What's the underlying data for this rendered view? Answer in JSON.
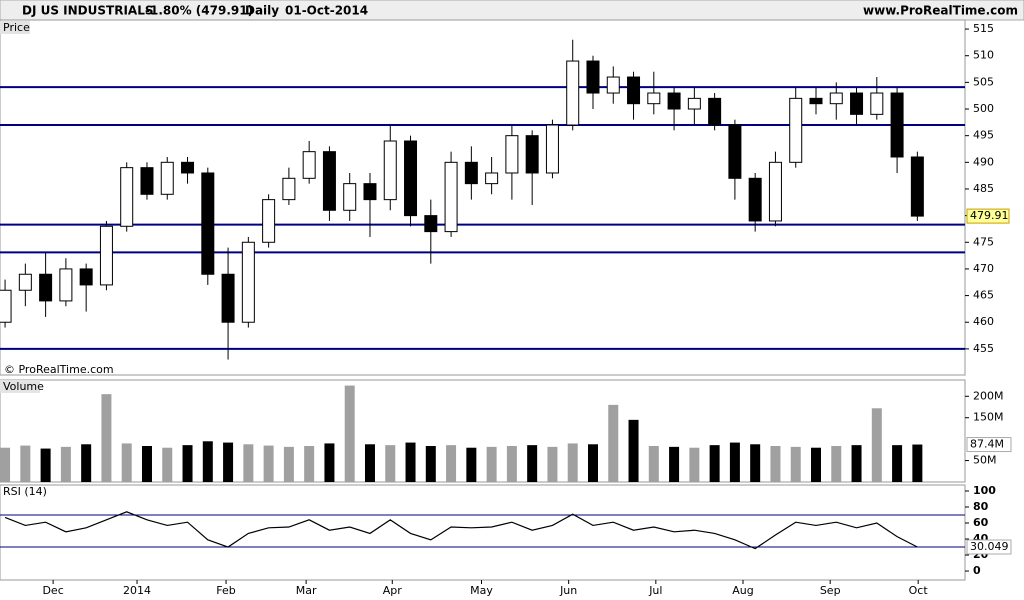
{
  "header": {
    "title": "DJ US INDUSTRIALS",
    "change": "-1.80% (479.91)",
    "period": "Daily",
    "date": "01-Oct-2014",
    "site": "www.ProRealTime.com"
  },
  "chart_data": [
    {
      "type": "candlestick",
      "panel_label": "Price",
      "copyright": "© ProRealTime.com",
      "open": [
        460,
        466,
        469,
        464,
        470,
        467,
        478,
        489,
        484,
        490,
        488,
        469,
        460,
        475,
        483,
        487,
        492,
        481,
        486,
        483,
        494,
        480,
        477,
        490,
        486,
        488,
        495,
        488,
        497,
        509,
        503,
        506,
        501,
        503,
        500,
        502,
        497,
        487,
        479,
        490,
        502,
        501,
        503,
        499,
        503,
        491
      ],
      "high": [
        468,
        471,
        473,
        472,
        471,
        479,
        490,
        490,
        491,
        491,
        489,
        474,
        476,
        484,
        489,
        494,
        493,
        488,
        488,
        497,
        495,
        483,
        492,
        493,
        491,
        497,
        496,
        498,
        513,
        510,
        508,
        507,
        507,
        504,
        504,
        503,
        498,
        488,
        492,
        504,
        504,
        505,
        504,
        506,
        504,
        492
      ],
      "low": [
        459,
        463,
        461,
        463,
        462,
        466,
        477,
        483,
        483,
        486,
        467,
        453,
        459,
        474,
        482,
        486,
        479,
        479,
        476,
        481,
        478,
        471,
        476,
        483,
        484,
        483,
        482,
        487,
        496,
        500,
        501,
        498,
        499,
        496,
        497,
        496,
        483,
        477,
        478,
        489,
        499,
        498,
        497,
        498,
        488,
        479
      ],
      "close": [
        466,
        469,
        464,
        470,
        467,
        478,
        489,
        484,
        490,
        488,
        469,
        460,
        475,
        483,
        487,
        492,
        481,
        486,
        483,
        494,
        480,
        477,
        490,
        486,
        488,
        495,
        488,
        497,
        509,
        503,
        506,
        501,
        503,
        500,
        502,
        497,
        487,
        479,
        490,
        502,
        501,
        503,
        499,
        503,
        491,
        479.91
      ],
      "up_color": "#ffffff",
      "down_color": "#000000",
      "hlines": [
        504.1,
        497,
        478.3,
        473.1,
        455
      ],
      "hline_color": "#000080",
      "ylim": [
        450.1,
        516.7
      ],
      "yticks": [
        455,
        460,
        465,
        470,
        475,
        480,
        485,
        490,
        495,
        500,
        505,
        510,
        515
      ]
    },
    {
      "type": "bar",
      "panel_label": "Volume",
      "values": [
        80,
        85,
        78,
        82,
        88,
        205,
        90,
        84,
        80,
        86,
        95,
        92,
        88,
        85,
        82,
        84,
        90,
        225,
        88,
        86,
        92,
        84,
        86,
        80,
        82,
        84,
        86,
        82,
        90,
        88,
        180,
        145,
        84,
        82,
        80,
        86,
        92,
        88,
        84,
        82,
        80,
        84,
        86,
        172,
        86,
        87.4
      ],
      "value_labels": [
        null,
        null,
        null,
        null,
        null,
        null,
        null,
        null,
        null,
        null,
        null,
        null,
        null,
        null,
        null,
        null,
        null,
        null,
        null,
        null,
        null,
        null,
        null,
        null,
        null,
        null,
        null,
        null,
        null,
        null,
        null,
        null,
        null,
        null,
        null,
        null,
        null,
        null,
        null,
        null,
        null,
        null,
        null,
        null,
        null,
        "87.4M"
      ],
      "up_color": "#a0a0a0",
      "down_color": "#000000",
      "ylim": [
        0,
        238
      ],
      "yticks": [
        {
          "value": 50,
          "label": "50M"
        },
        {
          "value": 150,
          "label": "150M"
        },
        {
          "value": 200,
          "label": "200M"
        }
      ]
    },
    {
      "type": "line",
      "panel_label": "RSI (14)",
      "color": "#000000",
      "values": [
        67,
        57,
        61,
        49,
        54,
        64,
        74,
        64,
        57,
        61,
        39,
        30,
        47,
        54,
        55,
        64,
        51,
        55,
        47,
        64,
        47,
        39,
        55,
        54,
        55,
        61,
        51,
        57,
        71,
        57,
        61,
        51,
        55,
        49,
        51,
        47,
        39,
        28,
        45,
        61,
        57,
        61,
        54,
        60,
        43,
        30.049
      ],
      "hlines": [
        70,
        30
      ],
      "hline_color": "#000080",
      "ylim": [
        -11.2,
        107.5
      ],
      "yticks": [
        0,
        20,
        40,
        60,
        80,
        100
      ],
      "xlim": [
        -0.25,
        47.35
      ],
      "xticks": [
        {
          "value": 2.37,
          "label": "Dec"
        },
        {
          "value": 6.51,
          "label": "2014"
        },
        {
          "value": 10.9,
          "label": "Feb"
        },
        {
          "value": 14.85,
          "label": "Mar"
        },
        {
          "value": 19.1,
          "label": "Apr"
        },
        {
          "value": 23.5,
          "label": "May"
        },
        {
          "value": 27.8,
          "label": "Jun"
        },
        {
          "value": 32.1,
          "label": "Jul"
        },
        {
          "value": 36.4,
          "label": "Aug"
        },
        {
          "value": 40.7,
          "label": "Sep"
        },
        {
          "value": 45.04,
          "label": "Oct"
        }
      ]
    }
  ]
}
